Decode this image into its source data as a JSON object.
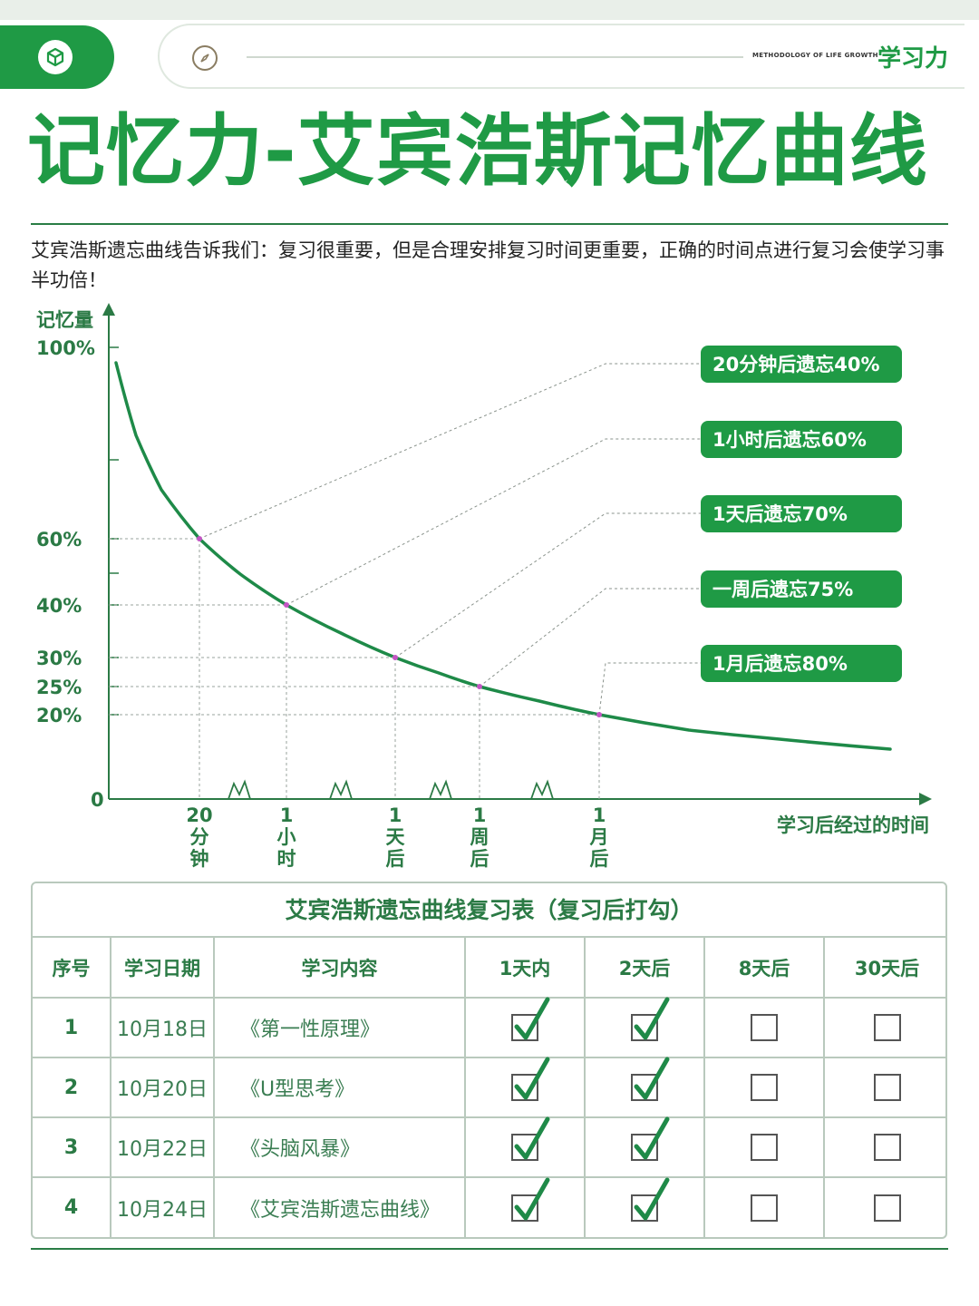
{
  "header": {
    "subtitle": "METHODOLOGY OF LIFE GROWTH",
    "brand": "学习力",
    "logo_icon": "cube-icon",
    "nav_icon": "compass-icon"
  },
  "title": "记忆力-艾宾浩斯记忆曲线",
  "intro": "艾宾浩斯遗忘曲线告诉我们：复习很重要，但是合理安排复习时间更重要，正确的时间点进行复习会使学习事半功倍！",
  "colors": {
    "accent": "#1f9a45",
    "curve": "#1e8a48",
    "text_green": "#2b7a45"
  },
  "chart_data": {
    "type": "line",
    "ylabel": "记忆量",
    "xlabel": "学习后经过的时间",
    "y_ticks": [
      "100%",
      "60%",
      "40%",
      "30%",
      "25%",
      "20%",
      "0"
    ],
    "points": [
      {
        "x": "20分钟",
        "y": 60,
        "note": "20分钟后遗忘40%"
      },
      {
        "x": "1小时",
        "y": 40,
        "note": "1小时后遗忘60%"
      },
      {
        "x": "1天后",
        "y": 30,
        "note": "1天后遗忘70%"
      },
      {
        "x": "1周后",
        "y": 25,
        "note": "一周后遗忘75%"
      },
      {
        "x": "1月后",
        "y": 20,
        "note": "1月后遗忘80%"
      }
    ],
    "x_labels": [
      [
        "20",
        "分",
        "钟"
      ],
      [
        "1",
        "小",
        "时"
      ],
      [
        "1",
        "天",
        "后"
      ],
      [
        "1",
        "周",
        "后"
      ],
      [
        "1",
        "月",
        "后"
      ]
    ],
    "ylim": [
      0,
      100
    ]
  },
  "table": {
    "title": "艾宾浩斯遗忘曲线复习表（复习后打勾）",
    "headers": [
      "序号",
      "学习日期",
      "学习内容",
      "1天内",
      "2天后",
      "8天后",
      "30天后"
    ],
    "rows": [
      {
        "num": "1",
        "date": "10月18日",
        "content": "《第一性原理》",
        "checks": [
          true,
          true,
          false,
          false
        ]
      },
      {
        "num": "2",
        "date": "10月20日",
        "content": "《U型思考》",
        "checks": [
          true,
          true,
          false,
          false
        ]
      },
      {
        "num": "3",
        "date": "10月22日",
        "content": "《头脑风暴》",
        "checks": [
          true,
          true,
          false,
          false
        ]
      },
      {
        "num": "4",
        "date": "10月24日",
        "content": "《艾宾浩斯遗忘曲线》",
        "checks": [
          true,
          true,
          false,
          false
        ]
      }
    ]
  }
}
